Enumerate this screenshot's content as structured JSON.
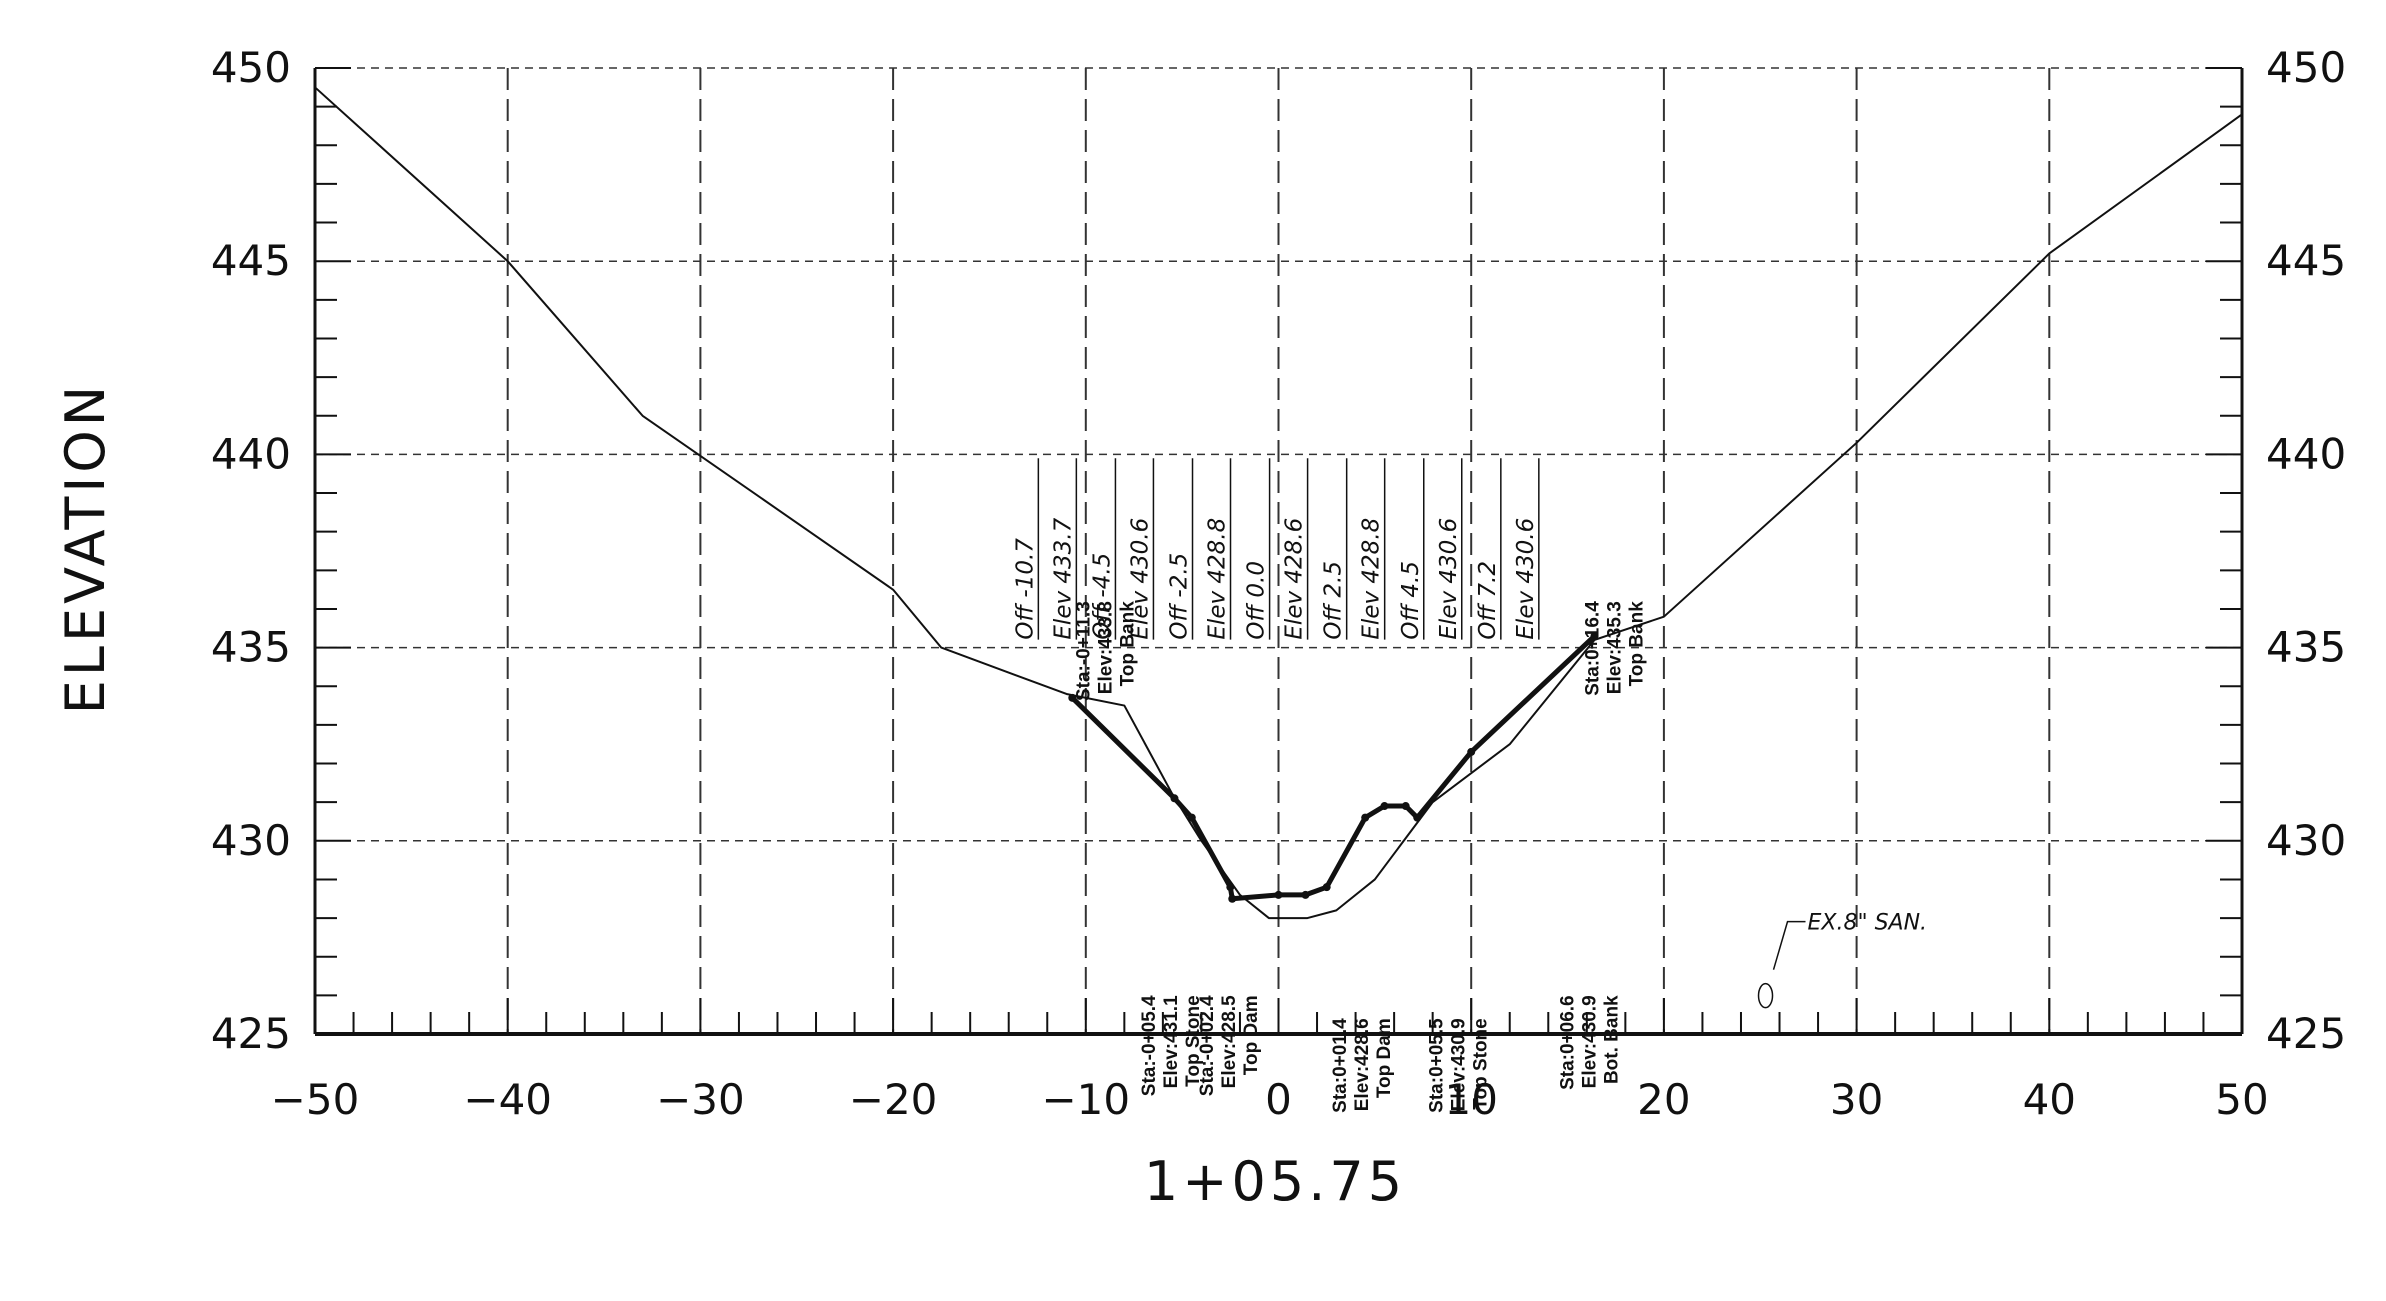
{
  "chart_data": {
    "type": "line",
    "xlabel": "1+05.75",
    "ylabel": "ELEVATION",
    "xlim": [
      -50,
      50
    ],
    "ylim": [
      425,
      450
    ],
    "x_ticks": [
      -50,
      -40,
      -30,
      -20,
      -10,
      0,
      10,
      20,
      30,
      40,
      50
    ],
    "y_ticks": [
      450,
      445,
      440,
      435,
      430,
      425
    ],
    "grid": true,
    "series": [
      {
        "points": [
          [
            -50,
            449.5
          ],
          [
            -40,
            445.0
          ],
          [
            -33,
            441.0
          ],
          [
            -20,
            436.5
          ],
          [
            -17.5,
            435.0
          ],
          [
            -11,
            433.8
          ],
          [
            -8,
            433.5
          ],
          [
            -5.5,
            431.2
          ],
          [
            -4,
            430.0
          ],
          [
            -2,
            428.6
          ],
          [
            -0.5,
            428.0
          ],
          [
            1.5,
            428.0
          ],
          [
            3,
            428.2
          ],
          [
            5,
            429.0
          ],
          [
            8,
            431.0
          ],
          [
            12,
            432.5
          ],
          [
            16.4,
            435.2
          ],
          [
            20,
            435.8
          ],
          [
            30,
            440.3
          ],
          [
            40,
            445.2
          ],
          [
            50,
            448.8
          ]
        ]
      },
      {
        "points": [
          [
            -10.7,
            433.7
          ],
          [
            -5.4,
            431.1
          ],
          [
            -4.5,
            430.6
          ],
          [
            -2.5,
            428.8
          ],
          [
            -2.4,
            428.5
          ],
          [
            0,
            428.6
          ],
          [
            1.4,
            428.6
          ],
          [
            2.5,
            428.8
          ],
          [
            4.5,
            430.6
          ],
          [
            5.5,
            430.9
          ],
          [
            6.6,
            430.9
          ],
          [
            7.2,
            430.6
          ],
          [
            10,
            432.3
          ],
          [
            16.4,
            435.3
          ]
        ]
      }
    ],
    "vertical_labels": [
      {
        "x": -9.8,
        "lines": [
          "Sta:-0+11.3",
          "Elev:433.8",
          "Top Bank"
        ]
      },
      {
        "x": -6.4,
        "lines": [
          "Sta:-0+05.4",
          "Elev:431.1",
          "Top Stone"
        ]
      },
      {
        "x": -3.4,
        "lines": [
          "Sta:-0+02.4",
          "Elev:428.5",
          "Top Dam"
        ]
      },
      {
        "x": 3.5,
        "lines": [
          "Sta:0+01.4",
          "Elev:428.6",
          "Top Dam"
        ]
      },
      {
        "x": 8.5,
        "lines": [
          "Sta:0+05.5",
          "Elev:430.9",
          "Top Stone"
        ]
      },
      {
        "x": 15.3,
        "lines": [
          "Sta:0+06.6",
          "Elev:430.9",
          "Bot. Bank"
        ]
      },
      {
        "x": 16.6,
        "lines": [
          "Sta:0+16.4",
          "Elev:435.3",
          "Top Bank"
        ]
      }
    ],
    "offset_labels": [
      {
        "x": -13.5,
        "texts": [
          "Off -10.7",
          "Elev 433.7"
        ]
      },
      {
        "x": -9.5,
        "texts": [
          "Off -4.5",
          "Elev 430.6"
        ]
      },
      {
        "x": -5.5,
        "texts": [
          "Off -2.5",
          "Elev 428.8"
        ]
      },
      {
        "x": -1.5,
        "texts": [
          "Off 0.0",
          "Elev 428.6"
        ]
      },
      {
        "x": 2.5,
        "texts": [
          "Off 2.5",
          "Elev 428.8"
        ]
      },
      {
        "x": 6.5,
        "texts": [
          "Off 4.5",
          "Elev 430.6"
        ]
      },
      {
        "x": 10.5,
        "texts": [
          "Off 7.2",
          "Elev 430.6"
        ]
      }
    ],
    "annotations": [
      {
        "x": 26,
        "y": 427.7,
        "text": "EX.8\" SAN."
      }
    ]
  }
}
